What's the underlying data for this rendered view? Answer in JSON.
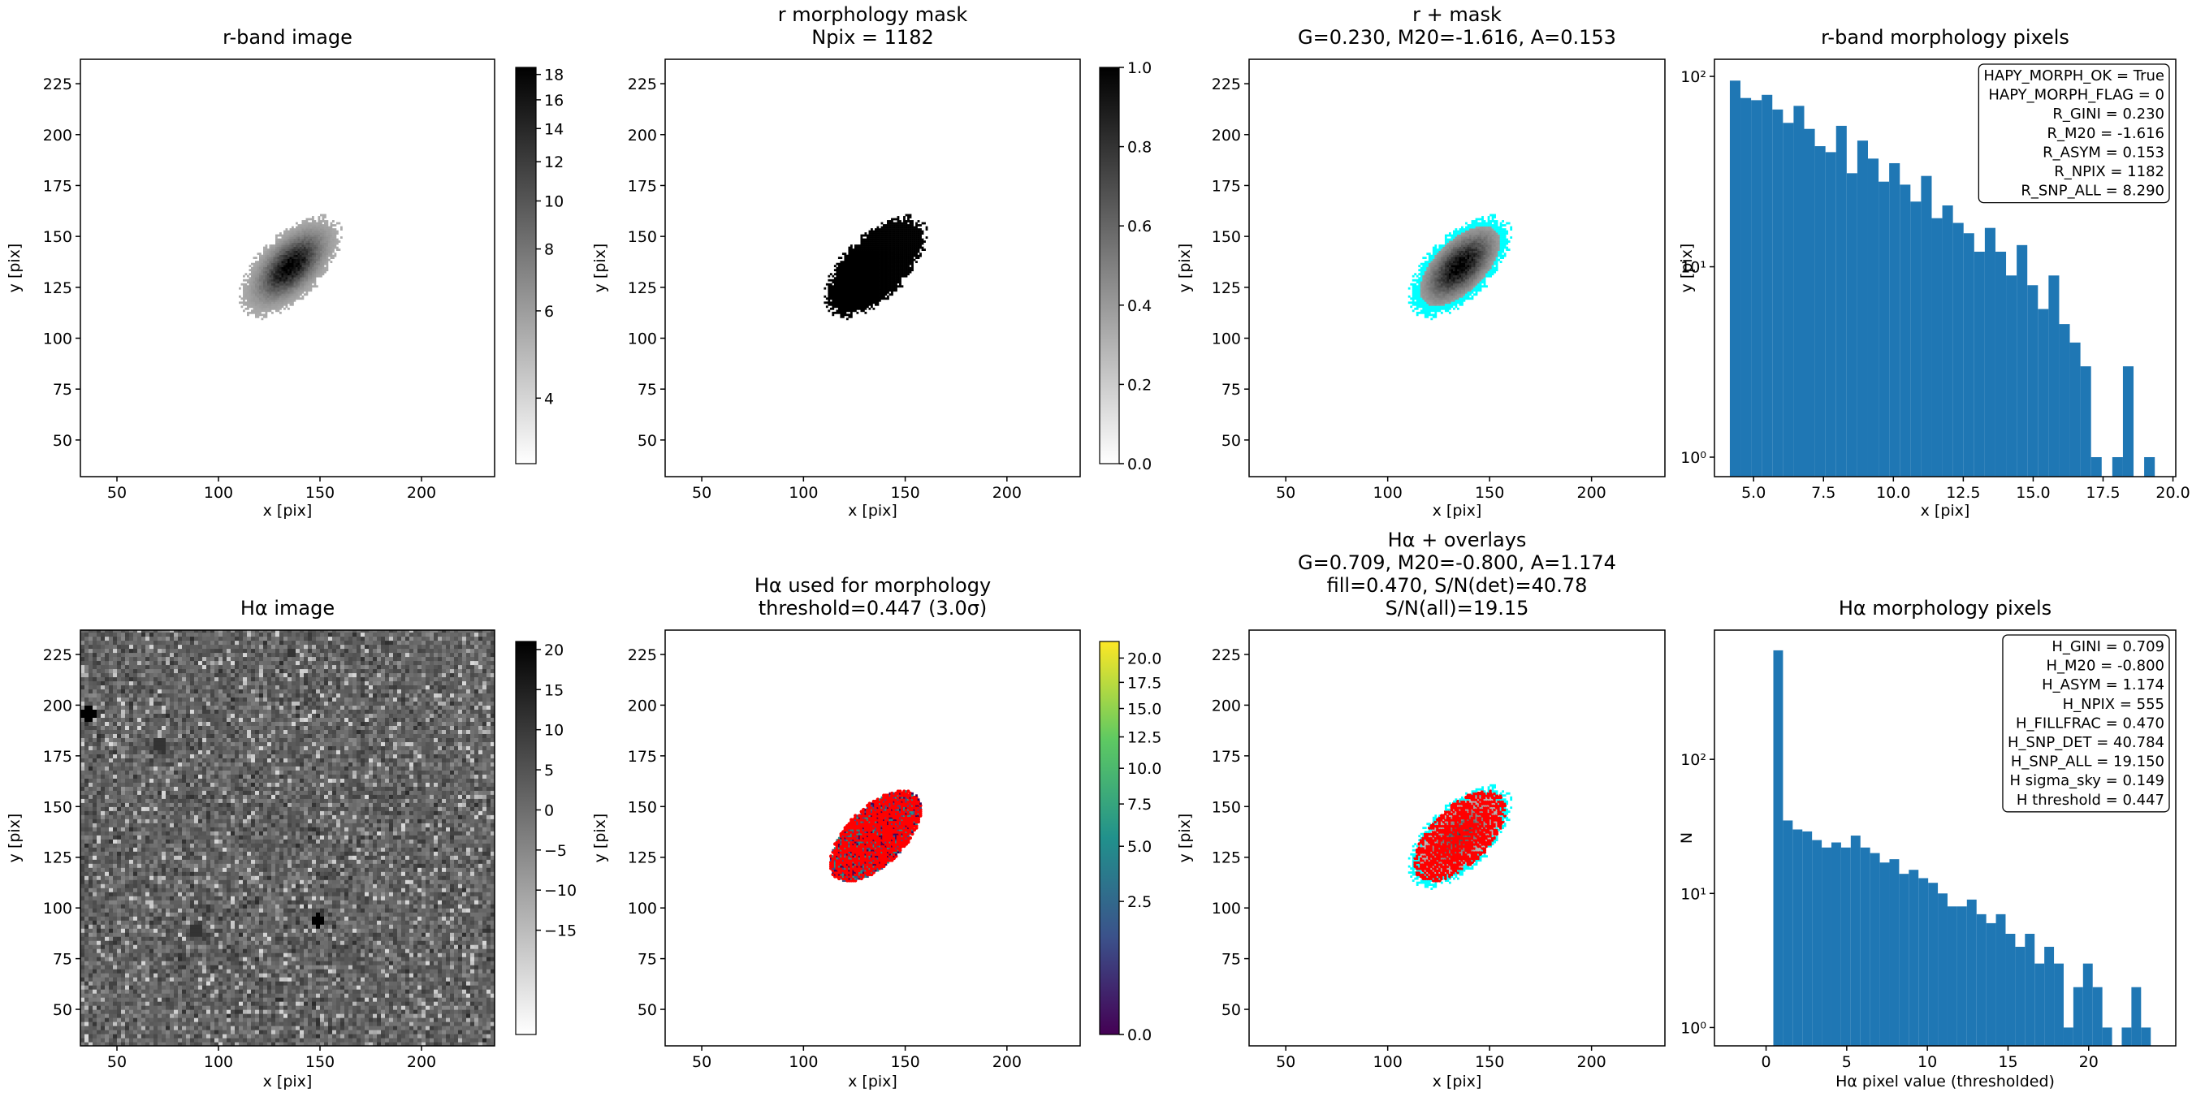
{
  "chart_data": [
    {
      "type": "image",
      "title": [
        "r-band image"
      ],
      "xlabel": "x [pix]",
      "ylabel": "y [pix]",
      "xlim": [
        32,
        236
      ],
      "ylim": [
        32,
        237
      ],
      "xticks": [
        50,
        100,
        150,
        200
      ],
      "yticks": [
        50,
        75,
        100,
        125,
        150,
        175,
        200,
        225
      ],
      "cmap": "gray_r",
      "colorbar": {
        "scale": "log",
        "lim": [
          2.95,
          18.6
        ],
        "ticks": [
          4,
          6,
          8,
          10,
          12,
          14,
          16,
          18
        ]
      }
    },
    {
      "type": "image",
      "title": [
        "r morphology mask",
        "Npix = 1182"
      ],
      "xlabel": "x [pix]",
      "ylabel": "y [pix]",
      "xlim": [
        32,
        236
      ],
      "ylim": [
        32,
        237
      ],
      "xticks": [
        50,
        100,
        150,
        200
      ],
      "yticks": [
        50,
        75,
        100,
        125,
        150,
        175,
        200,
        225
      ],
      "cmap": "gray_r",
      "colorbar": {
        "scale": "linear",
        "lim": [
          0,
          1
        ],
        "ticks": [
          {
            "value": 0,
            "label": "0.0"
          },
          0.2,
          0.4,
          0.6,
          0.8,
          {
            "value": 1,
            "label": "1.0"
          }
        ]
      }
    },
    {
      "type": "image",
      "title": [
        "r + mask",
        "G=0.230, M20=-1.616, A=0.153"
      ],
      "xlabel": "x [pix]",
      "ylabel": "y [pix]",
      "xlim": [
        32,
        236
      ],
      "ylim": [
        32,
        237
      ],
      "xticks": [
        50,
        100,
        150,
        200
      ],
      "yticks": [
        50,
        75,
        100,
        125,
        150,
        175,
        200,
        225
      ],
      "cmap": "gray_r",
      "overlay_color": "#00ffff"
    },
    {
      "type": "histogram",
      "title": [
        "r-band morphology pixels"
      ],
      "xlabel": "x [pix]",
      "ylabel": "y [pix]",
      "bins": [
        4.15,
        4.53,
        4.91,
        5.29,
        5.67,
        6.05,
        6.43,
        6.81,
        7.19,
        7.57,
        7.95,
        8.33,
        8.71,
        9.09,
        9.47,
        9.85,
        10.23,
        10.61,
        10.99,
        11.37,
        11.75,
        12.13,
        12.51,
        12.89,
        13.27,
        13.65,
        14.03,
        14.41,
        14.79,
        15.17,
        15.55,
        15.93,
        16.31,
        16.69,
        17.07,
        17.45,
        17.83,
        18.21,
        18.59,
        18.97,
        19.35
      ],
      "values": [
        95,
        77,
        75,
        80,
        67,
        57,
        70,
        53,
        43,
        40,
        55,
        31,
        46,
        37,
        28,
        35,
        27,
        22,
        30,
        18,
        21,
        17,
        15,
        12,
        16,
        12,
        9,
        13,
        8,
        6,
        9,
        5,
        4,
        3,
        1,
        0,
        1,
        3,
        0,
        1
      ],
      "color": "#1f77b4",
      "yscale": "log",
      "xlim": [
        3.6,
        20.1
      ],
      "ylim": [
        0.79,
        123
      ],
      "xticks": [
        {
          "value": 5,
          "label": "5.0"
        },
        7.5,
        {
          "value": 10,
          "label": "10.0"
        },
        12.5,
        {
          "value": 15,
          "label": "15.0"
        },
        17.5,
        {
          "value": 20,
          "label": "20.0"
        }
      ],
      "yticks": [
        {
          "value": 1,
          "label": "10⁰"
        },
        {
          "value": 10,
          "label": "10¹"
        },
        {
          "value": 100,
          "label": "10²"
        }
      ],
      "annotations": [
        "HAPY_MORPH_OK = True",
        "HAPY_MORPH_FLAG = 0",
        "R_GINI = 0.230",
        "R_M20 = -1.616",
        "R_ASYM = 0.153",
        "R_NPIX = 1182",
        "R_SNP_ALL = 8.290"
      ]
    },
    {
      "type": "image",
      "title": [
        "Hα image"
      ],
      "xlabel": "x [pix]",
      "ylabel": "y [pix]",
      "xlim": [
        32,
        236
      ],
      "ylim": [
        32,
        237
      ],
      "xticks": [
        50,
        100,
        150,
        200
      ],
      "yticks": [
        50,
        75,
        100,
        125,
        150,
        175,
        200,
        225
      ],
      "cmap": "gray_r",
      "colorbar": {
        "scale": "linear",
        "lim": [
          -28,
          21
        ],
        "ticks": [
          {
            "value": -15,
            "label": "−15"
          },
          {
            "value": -10,
            "label": "−10"
          },
          {
            "value": -5,
            "label": "−5"
          },
          0,
          5,
          10,
          15,
          20
        ]
      }
    },
    {
      "type": "image",
      "title": [
        "Hα used for morphology",
        "threshold=0.447 (3.0σ)"
      ],
      "xlabel": "x [pix]",
      "ylabel": "y [pix]",
      "xlim": [
        32,
        236
      ],
      "ylim": [
        32,
        237
      ],
      "xticks": [
        50,
        100,
        150,
        200
      ],
      "yticks": [
        50,
        75,
        100,
        125,
        150,
        175,
        200,
        225
      ],
      "cmap": "viridis",
      "marker_color": "#ff0000",
      "colorbar": {
        "scale": "sqrt",
        "lim": [
          0,
          21.8
        ],
        "ticks": [
          {
            "value": 0,
            "label": "0.0"
          },
          2.5,
          {
            "value": 5,
            "label": "5.0"
          },
          7.5,
          {
            "value": 10,
            "label": "10.0"
          },
          12.5,
          {
            "value": 15,
            "label": "15.0"
          },
          17.5,
          {
            "value": 20,
            "label": "20.0"
          }
        ]
      }
    },
    {
      "type": "image",
      "title": [
        "Hα + overlays",
        "G=0.709, M20=-0.800, A=1.174",
        "fill=0.470, S/N(det)=40.78",
        "S/N(all)=19.15"
      ],
      "xlabel": "x [pix]",
      "ylabel": "y [pix]",
      "xlim": [
        32,
        236
      ],
      "ylim": [
        32,
        237
      ],
      "xticks": [
        50,
        100,
        150,
        200
      ],
      "yticks": [
        50,
        75,
        100,
        125,
        150,
        175,
        200,
        225
      ],
      "cmap": "gray_r",
      "overlay_color": "#00ffff",
      "marker_color": "#ff0000"
    },
    {
      "type": "histogram",
      "title": [
        "Hα morphology pixels"
      ],
      "xlabel": "Hα pixel value (thresholded)",
      "ylabel": "N",
      "bins": [
        0.45,
        1.05,
        1.65,
        2.25,
        2.85,
        3.45,
        4.05,
        4.65,
        5.25,
        5.85,
        6.45,
        7.05,
        7.65,
        8.25,
        8.85,
        9.45,
        10.05,
        10.65,
        11.25,
        11.85,
        12.45,
        13.05,
        13.65,
        14.25,
        14.85,
        15.45,
        16.05,
        16.65,
        17.25,
        17.85,
        18.45,
        19.05,
        19.65,
        20.25,
        20.85,
        21.45,
        22.05,
        22.65,
        23.25,
        23.85,
        24.45
      ],
      "values": [
        650,
        35,
        30,
        29,
        25,
        22,
        24,
        22,
        27,
        22,
        20,
        17,
        18,
        14,
        15,
        13,
        12,
        10,
        8,
        8,
        9,
        7,
        6,
        7,
        5,
        4,
        5,
        3,
        4,
        3,
        1,
        2,
        3,
        2,
        1,
        0,
        1,
        2,
        1,
        0
      ],
      "color": "#1f77b4",
      "yscale": "log",
      "xlim": [
        -3.2,
        25.4
      ],
      "ylim": [
        0.73,
        920
      ],
      "xticks": [
        0,
        5,
        10,
        15,
        20
      ],
      "yticks": [
        {
          "value": 1,
          "label": "10⁰"
        },
        {
          "value": 10,
          "label": "10¹"
        },
        {
          "value": 100,
          "label": "10²"
        }
      ],
      "annotations": [
        "H_GINI = 0.709",
        "H_M20 = -0.800",
        "H_ASYM = 1.174",
        "H_NPIX = 555",
        "H_FILLFRAC = 0.470",
        "H_SNP_DET = 40.784",
        "H_SNP_ALL = 19.150",
        "H sigma_sky = 0.149",
        "H threshold = 0.447"
      ]
    }
  ]
}
